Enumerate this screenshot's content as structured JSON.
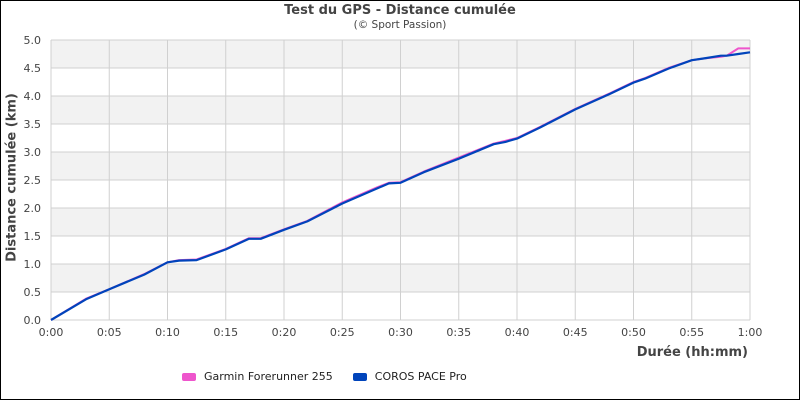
{
  "chart_data": {
    "type": "line",
    "title": "Test du GPS - Distance cumulée",
    "subtitle": "(© Sport Passion)",
    "xlabel": "Durée (hh:mm)",
    "ylabel": "Distance cumulée (km)",
    "xlim": [
      0,
      60
    ],
    "ylim": [
      0,
      5.0
    ],
    "x_tick_labels": [
      "0:00",
      "0:05",
      "0:10",
      "0:15",
      "0:20",
      "0:25",
      "0:30",
      "0:35",
      "0:40",
      "0:45",
      "0:50",
      "0:55",
      "1:00"
    ],
    "y_tick_labels": [
      "0.0",
      "0.5",
      "1.0",
      "1.5",
      "2.0",
      "2.5",
      "3.0",
      "3.5",
      "4.0",
      "4.5",
      "5.0"
    ],
    "grid": true,
    "legend_position": "bottom",
    "x_minutes": [
      0,
      3,
      5,
      8,
      10,
      11,
      12.5,
      15,
      17,
      18,
      20,
      22,
      25,
      28,
      29,
      30,
      32,
      35,
      38,
      39,
      40,
      42,
      45,
      48,
      50,
      51,
      53,
      55,
      56,
      57.5,
      58,
      59,
      60
    ],
    "series": [
      {
        "name": "Garmin Forerunner 255",
        "color": "#ee55cc",
        "values": [
          0,
          0.38,
          0.55,
          0.82,
          1.03,
          1.07,
          1.08,
          1.27,
          1.46,
          1.46,
          1.62,
          1.77,
          2.1,
          2.37,
          2.45,
          2.46,
          2.65,
          2.9,
          3.15,
          3.2,
          3.25,
          3.45,
          3.77,
          4.05,
          4.25,
          4.32,
          4.5,
          4.64,
          4.67,
          4.7,
          4.72,
          4.85,
          4.85
        ]
      },
      {
        "name": "COROS PACE Pro",
        "color": "#0044bb",
        "values": [
          0,
          0.37,
          0.55,
          0.81,
          1.03,
          1.06,
          1.07,
          1.26,
          1.45,
          1.45,
          1.61,
          1.76,
          2.08,
          2.35,
          2.44,
          2.45,
          2.64,
          2.88,
          3.14,
          3.18,
          3.24,
          3.44,
          3.76,
          4.04,
          4.24,
          4.31,
          4.49,
          4.64,
          4.67,
          4.72,
          4.72,
          4.75,
          4.78
        ]
      }
    ]
  },
  "legend": [
    {
      "label": "Garmin Forerunner 255",
      "color": "#ee55cc"
    },
    {
      "label": "COROS PACE Pro",
      "color": "#0044bb"
    }
  ]
}
